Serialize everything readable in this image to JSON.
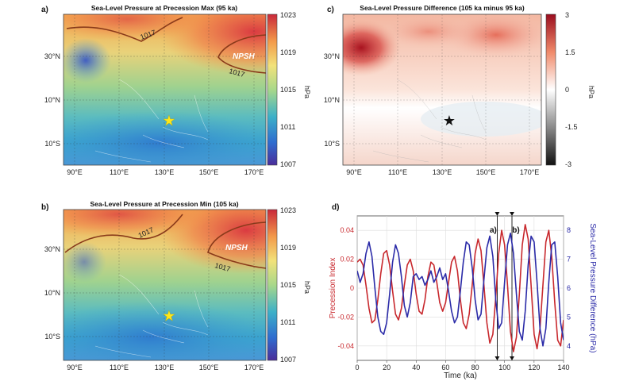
{
  "panels": {
    "a": {
      "label": "a)",
      "title": "Sea-Level Pressure at Precession Max (95 ka)",
      "contour_label_1": "1017",
      "contour_label_2": "1017",
      "npsh": "NPSH",
      "unit": "hPa",
      "colorbar_ticks": [
        "1023",
        "1019",
        "1015",
        "1011",
        "1007"
      ]
    },
    "b": {
      "label": "b)",
      "title": "Sea-Level Pressure at Precession Min (105 ka)",
      "contour_label_1": "1017",
      "contour_label_2": "1017",
      "npsh": "NPSH",
      "unit": "hPa",
      "colorbar_ticks": [
        "1023",
        "1019",
        "1015",
        "1011",
        "1007"
      ]
    },
    "c": {
      "label": "c)",
      "title": "Sea-Level Pressure Difference (105 ka minus 95 ka)",
      "unit": "hPa",
      "colorbar_ticks": [
        "3",
        "1.5",
        "0",
        "-1.5",
        "-3"
      ]
    },
    "d": {
      "label": "d)",
      "marker_a": "a)",
      "marker_b": "b)"
    }
  },
  "map_axes": {
    "lon_ticks": [
      "90°E",
      "110°E",
      "130°E",
      "150°E",
      "170°E"
    ],
    "lat_ticks": [
      "30°N",
      "10°N",
      "10°S"
    ]
  },
  "colors": {
    "precession": "#c8282d",
    "slp_difference": "#2b2ba8",
    "contour": "#8a3a1a",
    "star_maps": "#ffe81a",
    "star_diff": "#111111"
  },
  "chart_data": {
    "type": "line",
    "xlabel": "Time (ka)",
    "ylabel_left": "Precession Index",
    "ylabel_right": "Sea-Level Pressure Difference (hPa)",
    "xlim": [
      0,
      140
    ],
    "ylim_left": [
      -0.05,
      0.05
    ],
    "ylim_right": [
      3.5,
      8.5
    ],
    "x_ticks": [
      "0",
      "20",
      "40",
      "60",
      "80",
      "100",
      "120",
      "140"
    ],
    "y_left_ticks": [
      "0.04",
      "0.02",
      "0",
      "-0.02",
      "-0.04"
    ],
    "y_right_ticks": [
      "8",
      "7",
      "6",
      "5",
      "4"
    ],
    "markers_ka": [
      95,
      105
    ],
    "series": [
      {
        "name": "Precession Index",
        "axis": "left",
        "x": [
          0,
          2,
          4,
          6,
          8,
          10,
          12,
          14,
          16,
          18,
          20,
          22,
          24,
          26,
          28,
          30,
          32,
          34,
          36,
          38,
          40,
          42,
          44,
          46,
          48,
          50,
          52,
          54,
          56,
          58,
          60,
          62,
          64,
          66,
          68,
          70,
          72,
          74,
          76,
          78,
          80,
          82,
          84,
          86,
          88,
          90,
          92,
          94,
          96,
          98,
          100,
          102,
          104,
          106,
          108,
          110,
          112,
          114,
          116,
          118,
          120,
          122,
          124,
          126,
          128,
          130,
          132,
          134,
          136,
          138,
          140
        ],
        "y": [
          0.018,
          0.02,
          0.016,
          0.002,
          -0.014,
          -0.024,
          -0.022,
          -0.008,
          0.01,
          0.024,
          0.026,
          0.016,
          -0.002,
          -0.018,
          -0.022,
          -0.014,
          0.002,
          0.016,
          0.02,
          0.012,
          -0.004,
          -0.016,
          -0.018,
          -0.008,
          0.008,
          0.018,
          0.016,
          0.004,
          -0.01,
          -0.016,
          -0.01,
          0.004,
          0.018,
          0.022,
          0.012,
          -0.008,
          -0.024,
          -0.028,
          -0.018,
          0.002,
          0.024,
          0.034,
          0.026,
          0.002,
          -0.024,
          -0.038,
          -0.032,
          -0.006,
          0.024,
          0.04,
          0.03,
          0.002,
          -0.03,
          -0.044,
          -0.034,
          -0.004,
          0.03,
          0.044,
          0.034,
          0.002,
          -0.032,
          -0.042,
          -0.028,
          0.002,
          0.032,
          0.04,
          0.022,
          -0.01,
          -0.036,
          -0.04,
          -0.022
        ]
      },
      {
        "name": "Sea-Level Pressure Difference",
        "axis": "right",
        "x": [
          0,
          2,
          4,
          6,
          8,
          10,
          12,
          14,
          16,
          18,
          20,
          22,
          24,
          26,
          28,
          30,
          32,
          34,
          36,
          38,
          40,
          42,
          44,
          46,
          48,
          50,
          52,
          54,
          56,
          58,
          60,
          62,
          64,
          66,
          68,
          70,
          72,
          74,
          76,
          78,
          80,
          82,
          84,
          86,
          88,
          90,
          92,
          94,
          96,
          98,
          100,
          102,
          104,
          106,
          108,
          110,
          112,
          114,
          116,
          118,
          120,
          122,
          124,
          126,
          128,
          130,
          132,
          134,
          136,
          138,
          140
        ],
        "y": [
          6.6,
          6.2,
          6.5,
          7.2,
          7.6,
          7.1,
          6.0,
          5.0,
          4.5,
          4.4,
          4.8,
          5.8,
          6.9,
          7.5,
          7.2,
          6.4,
          5.4,
          5.0,
          5.5,
          6.4,
          6.5,
          6.3,
          6.4,
          6.1,
          6.3,
          6.6,
          6.2,
          6.4,
          6.7,
          6.3,
          6.5,
          5.9,
          5.2,
          4.8,
          5.0,
          5.9,
          6.9,
          7.6,
          7.5,
          6.7,
          5.6,
          4.9,
          5.1,
          6.3,
          7.4,
          7.8,
          7.1,
          5.6,
          4.6,
          4.8,
          6.2,
          7.5,
          7.9,
          7.2,
          5.8,
          4.5,
          4.2,
          5.2,
          6.8,
          7.8,
          7.6,
          6.2,
          4.6,
          4.0,
          4.6,
          6.2,
          7.5,
          7.6,
          6.4,
          4.8,
          4.2
        ]
      }
    ]
  }
}
